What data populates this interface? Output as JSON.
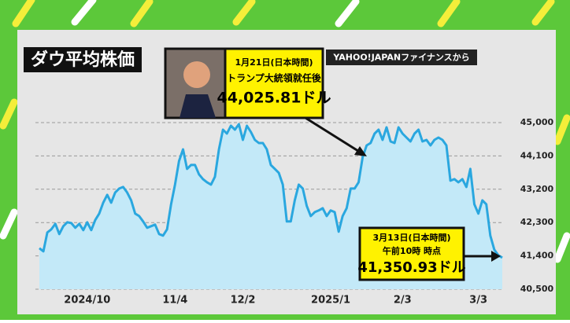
{
  "chart_data": {
    "type": "line",
    "title": "ダウ平均株価",
    "source": "YAHOO!JAPANファイナンスから",
    "categories": [
      null,
      null,
      null,
      null,
      null,
      null,
      null,
      null,
      null,
      null,
      null,
      null,
      "2024/10",
      null,
      null,
      null,
      null,
      null,
      null,
      null,
      null,
      null,
      null,
      null,
      null,
      null,
      null,
      null,
      null,
      null,
      null,
      null,
      null,
      null,
      "11/4",
      null,
      null,
      null,
      null,
      null,
      null,
      null,
      null,
      null,
      null,
      null,
      null,
      null,
      null,
      null,
      null,
      "12/2",
      null,
      null,
      null,
      null,
      null,
      null,
      null,
      null,
      null,
      null,
      null,
      null,
      null,
      null,
      null,
      null,
      null,
      null,
      null,
      null,
      null,
      "2025/1",
      null,
      null,
      null,
      null,
      null,
      null,
      null,
      null,
      null,
      null,
      null,
      null,
      null,
      null,
      null,
      null,
      null,
      "2/3",
      null,
      null,
      null,
      null,
      null,
      null,
      null,
      null,
      null,
      null,
      null,
      null,
      null,
      null,
      null,
      null,
      null,
      null,
      "3/3",
      null,
      null,
      null,
      null,
      null,
      null
    ],
    "values": [
      41608,
      41523,
      42032,
      42117,
      42265,
      41990,
      42202,
      42308,
      42286,
      42159,
      42265,
      42096,
      42308,
      42096,
      42371,
      42541,
      42838,
      43050,
      42838,
      43113,
      43219,
      43262,
      43113,
      42901,
      42541,
      42477,
      42329,
      42159,
      42202,
      42244,
      41990,
      41947,
      42117,
      42795,
      43325,
      43961,
      44279,
      43749,
      43855,
      43855,
      43601,
      43474,
      43389,
      43325,
      43537,
      44279,
      44809,
      44703,
      44915,
      44809,
      44958,
      44534,
      44915,
      44746,
      44534,
      44449,
      44449,
      44279,
      43855,
      43749,
      43643,
      43325,
      42329,
      42329,
      42901,
      43325,
      43219,
      42753,
      42477,
      42583,
      42626,
      42689,
      42477,
      42626,
      42583,
      42053,
      42477,
      42689,
      43219,
      43219,
      43389,
      44067,
      44385,
      44449,
      44703,
      44809,
      44534,
      44873,
      44491,
      44449,
      44873,
      44703,
      44597,
      44491,
      44703,
      44809,
      44491,
      44534,
      44385,
      44534,
      44597,
      44534,
      44385,
      43431,
      43474,
      43389,
      43474,
      43262,
      43749,
      42795,
      42541,
      42901,
      42795,
      41947,
      41566,
      41417,
      41351
    ],
    "color": "#2aa7df",
    "fill": "#c3e9f8",
    "ylim": [
      40500,
      45000
    ],
    "yticks": [
      {
        "value": 40500,
        "label": "40,500"
      },
      {
        "value": 41400,
        "label": "41,400"
      },
      {
        "value": 42300,
        "label": "42,300"
      },
      {
        "value": 43200,
        "label": "43,200"
      },
      {
        "value": 44100,
        "label": "44,100"
      },
      {
        "value": 45000,
        "label": "45,000"
      }
    ],
    "grid": true,
    "annotations": [
      {
        "date": "1月21日(日本時間)",
        "note": "トランプ大統領就任後",
        "value_label": "44,025.81ドル"
      },
      {
        "date": "3月13日(日本時間)",
        "note": "午前10時 時点",
        "value_label": "41,350.93ドル"
      }
    ]
  }
}
